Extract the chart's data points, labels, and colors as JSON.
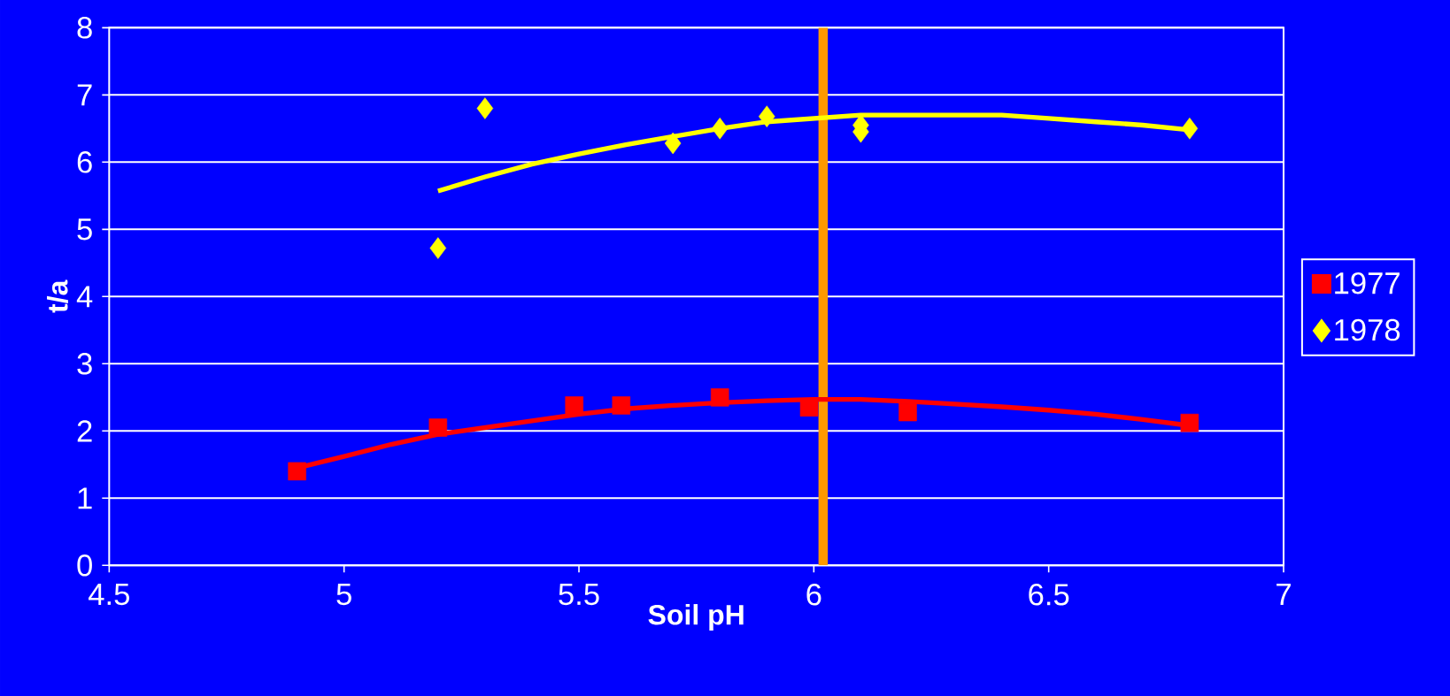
{
  "chart_data": {
    "type": "scatter",
    "xlabel": "Soil pH",
    "ylabel": "t/a",
    "xlim": [
      4.5,
      7
    ],
    "ylim": [
      0,
      8
    ],
    "xticks": [
      4.5,
      5,
      5.5,
      6,
      6.5,
      7
    ],
    "yticks": [
      0,
      1,
      2,
      3,
      4,
      5,
      6,
      7,
      8
    ],
    "grid": "y",
    "legend": "right",
    "series": [
      {
        "name": "1977",
        "color": "#ff0000",
        "marker": "square",
        "x": [
          4.9,
          5.2,
          5.49,
          5.59,
          5.8,
          5.99,
          6.2,
          6.8
        ],
        "values": [
          1.4,
          2.05,
          2.38,
          2.38,
          2.5,
          2.35,
          2.28,
          2.12
        ]
      },
      {
        "name": "1978",
        "color": "#ffff00",
        "marker": "diamond",
        "x": [
          5.2,
          5.3,
          5.7,
          5.8,
          5.9,
          6.1,
          6.1,
          6.8
        ],
        "values": [
          4.72,
          6.8,
          6.28,
          6.5,
          6.68,
          6.55,
          6.45,
          6.5
        ]
      },
      {
        "type": "line",
        "color": "#ff0000",
        "marker": "none",
        "x": [
          4.9,
          5.0,
          5.1,
          5.2,
          5.3,
          5.4,
          5.5,
          5.6,
          5.7,
          5.8,
          5.9,
          6.0,
          6.1,
          6.2,
          6.3,
          6.4,
          6.5,
          6.6,
          6.7,
          6.8
        ],
        "values": [
          1.45,
          1.62,
          1.8,
          1.95,
          2.05,
          2.15,
          2.25,
          2.33,
          2.38,
          2.42,
          2.45,
          2.47,
          2.47,
          2.44,
          2.4,
          2.36,
          2.31,
          2.25,
          2.17,
          2.08
        ]
      },
      {
        "type": "line",
        "color": "#ffff00",
        "marker": "none",
        "x": [
          5.2,
          5.3,
          5.4,
          5.5,
          5.6,
          5.7,
          5.8,
          5.9,
          6.0,
          6.1,
          6.2,
          6.3,
          6.4,
          6.5,
          6.6,
          6.7,
          6.8
        ],
        "values": [
          5.57,
          5.78,
          5.97,
          6.12,
          6.26,
          6.38,
          6.5,
          6.6,
          6.65,
          6.7,
          6.7,
          6.7,
          6.7,
          6.65,
          6.6,
          6.55,
          6.48
        ]
      }
    ],
    "ref_lines": [
      {
        "axis": "x",
        "value": 6.02,
        "color": "#ff9900"
      }
    ]
  }
}
